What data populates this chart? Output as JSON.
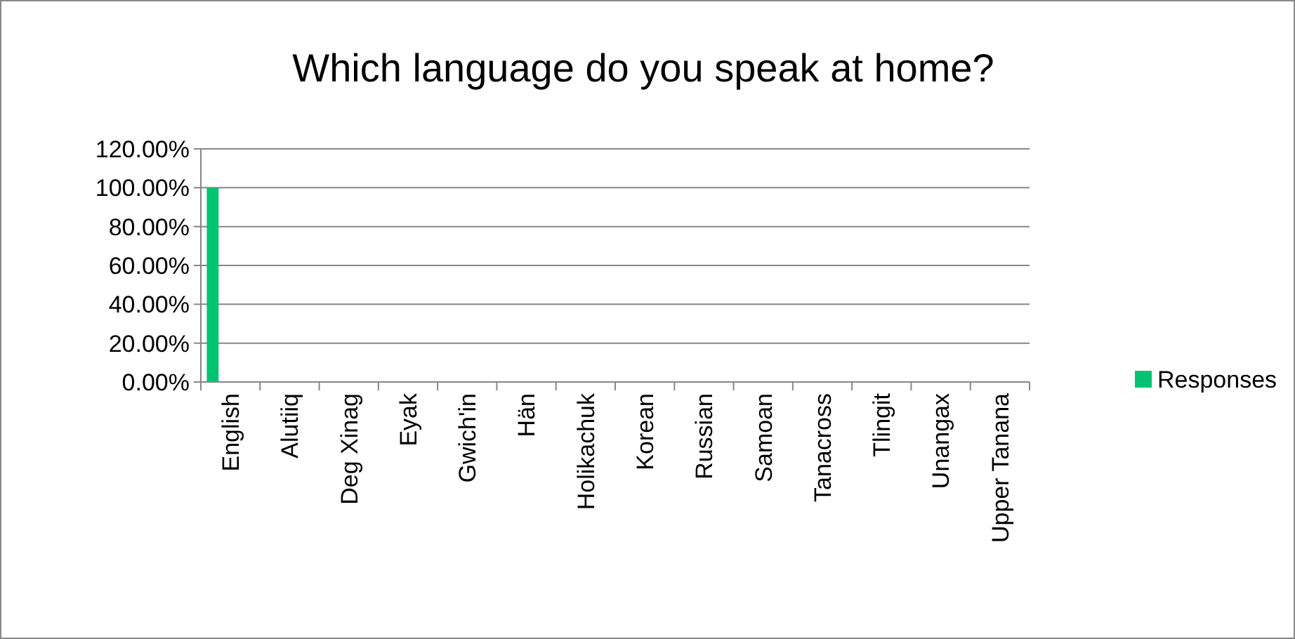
{
  "chart_data": {
    "type": "bar",
    "title": "Which language do you speak at home?",
    "categories": [
      "English",
      "Alutiiq",
      "Deg Xinag",
      "Eyak",
      "Gwich'in",
      "Hän",
      "Holikachuk",
      "Korean",
      "Russian",
      "Samoan",
      "Tanacross",
      "Tlingit",
      "Unangax",
      "Upper Tanana"
    ],
    "series": [
      {
        "name": "Responses",
        "color": "#00c472",
        "values": [
          100,
          0,
          0,
          0,
          0,
          0,
          0,
          0,
          0,
          0,
          0,
          0,
          0,
          0
        ]
      }
    ],
    "ylim": [
      0,
      120
    ],
    "yticks": [
      {
        "value": 0,
        "label": "0.00%"
      },
      {
        "value": 20,
        "label": "20.00%"
      },
      {
        "value": 40,
        "label": "40.00%"
      },
      {
        "value": 60,
        "label": "60.00%"
      },
      {
        "value": 80,
        "label": "80.00%"
      },
      {
        "value": 100,
        "label": "100.00%"
      },
      {
        "value": 120,
        "label": "120.00%"
      }
    ],
    "grid": "y",
    "legend": "right"
  }
}
